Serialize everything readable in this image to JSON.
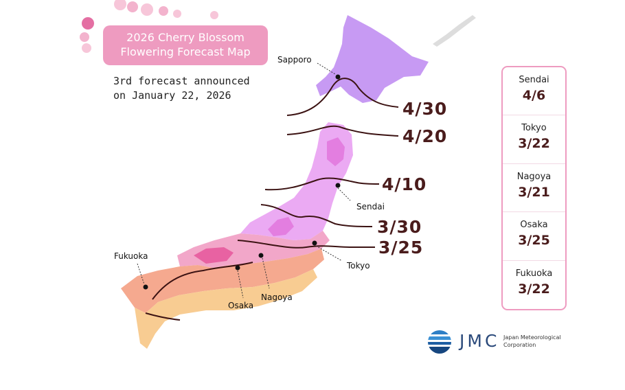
{
  "title": {
    "line1": "2026 Cherry Blossom",
    "line2": "Flowering Forecast Map"
  },
  "subtitle": {
    "line1": "3rd forecast announced",
    "line2": "on January 22, 2026"
  },
  "isoline_labels": [
    "4/30",
    "4/20",
    "4/10",
    "3/30",
    "3/25"
  ],
  "cities": {
    "sapporo": "Sapporo",
    "sendai": "Sendai",
    "tokyo": "Tokyo",
    "nagoya": "Nagoya",
    "osaka": "Osaka",
    "fukuoka": "Fukuoka"
  },
  "forecast_panel": [
    {
      "city": "Sendai",
      "date": "4/6"
    },
    {
      "city": "Tokyo",
      "date": "3/22"
    },
    {
      "city": "Nagoya",
      "date": "3/21"
    },
    {
      "city": "Osaka",
      "date": "3/25"
    },
    {
      "city": "Fukuoka",
      "date": "3/22"
    }
  ],
  "logo": {
    "name": "JMC",
    "corp_line1": "Japan Meteorological",
    "corp_line2": "Corporation"
  },
  "colors": {
    "hokkaido": "#c79af3",
    "north_honshu": "#ebaaf3",
    "north_core": "#e37ee0",
    "central": "#f2a7c9",
    "west": "#f5a98f",
    "south": "#f8cc92",
    "isoline": "#3b1212",
    "accent": "#ee9bc0"
  }
}
